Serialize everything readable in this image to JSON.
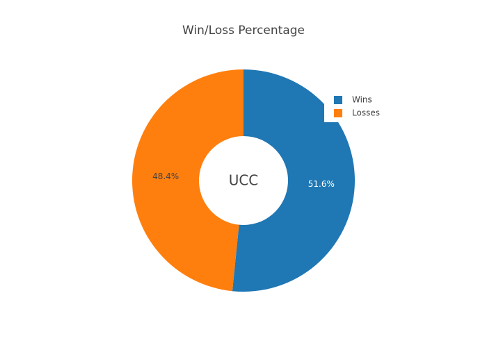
{
  "chart_data": {
    "type": "pie",
    "title": "Win/Loss Percentage",
    "annotation": "UCC",
    "categories": [
      "Wins",
      "Losses"
    ],
    "values": [
      51.6,
      48.4
    ],
    "value_labels": [
      "51.6%",
      "48.4%"
    ],
    "colors": [
      "#1f77b4",
      "#ff7f0e"
    ],
    "label_colors": [
      "#ffffff",
      "#444444"
    ],
    "hole": 0.4,
    "legend": "top-right"
  }
}
